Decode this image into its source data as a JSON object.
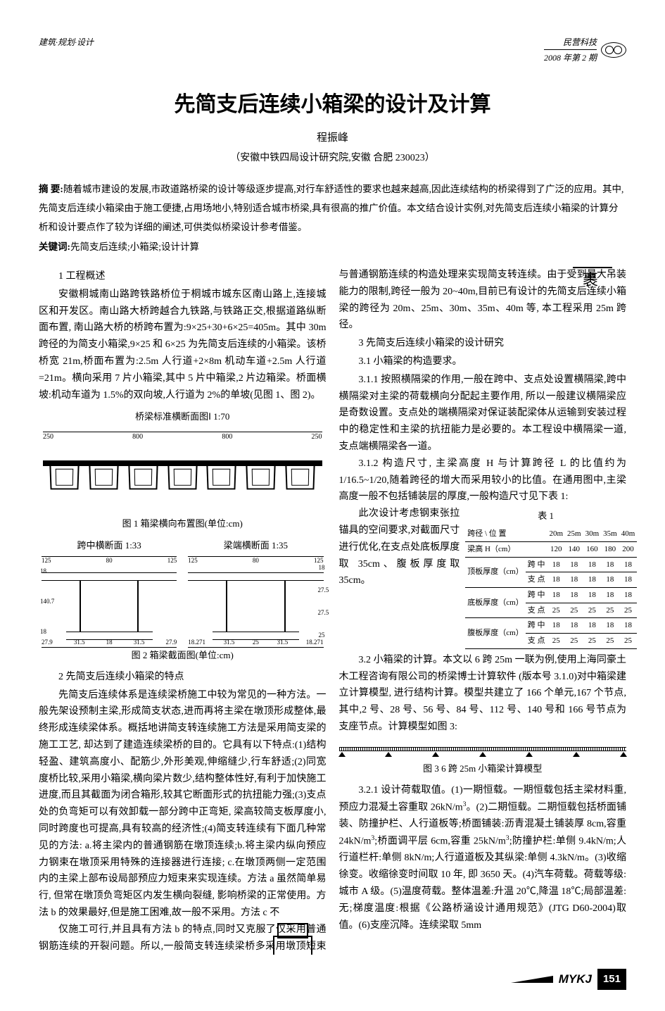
{
  "header": {
    "left": "建筑·规划·设计",
    "journal": "民营科技",
    "issue": "2008 年第 2 期"
  },
  "title": "先简支后连续小箱梁的设计及计算",
  "author": "程振峰",
  "affiliation": "（安徽中铁四局设计研究院,安徽 合肥 230023）",
  "abstract_label": "摘 要:",
  "abstract": "随着城市建设的发展,市政道路桥梁的设计等级逐步提高,对行车舒适性的要求也越来越高,因此连续结构的桥梁得到了广泛的应用。其中,先简支后连续小箱梁由于施工便捷,占用场地小,特别适合城市桥梁,具有很高的推广价值。本文结合设计实例,对先简支后连续小箱梁的计算分析和设计要点作了较为详细的阐述,可供类似桥梁设计参考借鉴。",
  "keywords_label": "关键词:",
  "keywords": "先简支后连续;小箱梁;设计计算",
  "sections": {
    "s1_title": "1 工程概述",
    "s1_body": "安徽桐城南山路跨铁路桥位于桐城市城东区南山路上,连接城区和开发区。南山路大桥跨越合九铁路,与铁路正交,根据道路纵断面布置, 南山路大桥的桥跨布置为:9×25+30+6×25=405m。其中 30m 跨径的为简支小箱梁,9×25 和 6×25 为先简支后连续的小箱梁。该桥桥宽 21m,桥面布置为:2.5m 人行道+2×8m 机动车道+2.5m 人行道=21m。横向采用 7 片小箱梁,其中 5 片中箱梁,2 片边箱梁。桥面横坡:机动车道为 1.5%的双向坡,人行道为 2%的单坡(见图 1、图 2)。",
    "fig1_title": "桥梁标准横断面图Ⅰ   1:70",
    "fig1_caption": "图 1 箱梁横向布置图(单位:cm)",
    "fig1_top_dims": [
      "250",
      "800",
      "800",
      "250"
    ],
    "fig2_left_title": "跨中横断面   1:33",
    "fig2_right_title": "梁端横断面   1:35",
    "fig2_caption": "图 2 箱梁截面图(单位:cm)",
    "fig2_left_top_dims": [
      "125",
      "80",
      "125"
    ],
    "fig2_left_side": [
      "18",
      "140.7",
      "18"
    ],
    "fig2_left_bot_dims": [
      "27.9",
      "31.5",
      "18",
      "31.5",
      "27.9"
    ],
    "fig2_right_top_dims": [
      "125",
      "80",
      "125"
    ],
    "fig2_right_side": [
      "18",
      "27.5",
      "27.5",
      "25"
    ],
    "fig2_right_bot_dims": [
      "18.271",
      "31.5",
      "25",
      "31.5",
      "18.271"
    ],
    "s2_title": "2 先简支后连续小箱梁的特点",
    "s2_body": "先简支后连续体系是连续梁桥施工中较为常见的一种方法。一般先架设预制主梁,形成简支状态,进而再将主梁在墩顶形成整体,最终形成连续梁体系。概括地讲简支转连续施工方法是采用简支梁的施工工艺, 却达到了建造连续梁桥的目的。它具有以下特点:(1)结构轻盈、建筑高度小、配筋少,外形美观,伸缩缝少,行车舒适;(2)同宽度桥比较,采用小箱梁,横向梁片数少,结构整体性好,有利于加快施工进度,而且其截面为闭合箱形,较其它断面形式的抗扭能力强;(3)支点处的负弯矩可以有效卸载一部分跨中正弯矩, 梁高较简支板厚度小, 同时跨度也可提高,具有较高的经济性;(4)简支转连续有下面几种常见的方法: a.将主梁内的普通钢筋在墩顶连续;b.将主梁内纵向预应力钢束在墩顶采用特殊的连接器进行连接; c.在墩顶两侧一定范围内的主梁上部布设局部预应力短束来实现连续。方法 a 虽然简单易行, 但常在墩顶负弯矩区内发生横向裂缝, 影响桥梁的正常使用。方法 b 的效果最好,但是施工困难,故一般不采用。方法 c 不",
    "s2_r_body": "仅施工可行,并且具有方法 b 的特点,同时又克服了仅采用普通钢筋连续的开裂问题。所以,一般简支转连续梁桥多采用墩顶短束与普通钢筋连续的构造处理来实现简支转连续。由于受到最大吊装能力的限制,跨径一般为 20~40m,目前已有设计的先简支后连续小箱梁的跨径为 20m、25m、30m、35m、40m 等, 本工程采用 25m 跨径。",
    "s3_title": "3 先简支后连续小箱梁的设计研究",
    "s31_title": "3.1 小箱梁的构造要求。",
    "s311": "3.1.1 按照横隔梁的作用,一般在跨中、支点处设置横隔梁,跨中横隔梁对主梁的荷载横向分配起主要作用, 所以一般建议横隔梁应是奇数设置。支点处的端横隔梁对保证装配梁体从运输到安装过程中的稳定性和主梁的抗扭能力是必要的。本工程设中横隔梁一道,支点端横隔梁各一道。",
    "s312": "3.1.2 构造尺寸, 主梁高度 H 与计算跨径 L 的比值约为 1/16.5~1/20,随着跨径的增大而采用较小的比值。在通用图中,主梁高度一般不包括铺装层的厚度,一般构造尺寸见下表 1:",
    "tbl1_caption": "表 1",
    "tbl1_intro": "此次设计考虑钢束张拉锚具的空间要求,对截面尺寸进行优化,在支点处底板厚度取 35cm、腹板厚度取 35cm。",
    "table1": {
      "span_label": "跨径",
      "pos_label": "位 置",
      "spans": [
        "20m",
        "25m",
        "30m",
        "35m",
        "40m"
      ],
      "height_label": "梁高 H（cm）",
      "heights": [
        120,
        140,
        160,
        180,
        200
      ],
      "rows": [
        {
          "label": "顶板厚度（cm）",
          "r1": "跨 中",
          "v1": [
            18,
            18,
            18,
            18,
            18
          ],
          "r2": "支 点",
          "v2": [
            18,
            18,
            18,
            18,
            18
          ]
        },
        {
          "label": "底板厚度（cm）",
          "r1": "跨 中",
          "v1": [
            18,
            18,
            18,
            18,
            18
          ],
          "r2": "支 点",
          "v2": [
            25,
            25,
            25,
            25,
            25
          ]
        },
        {
          "label": "腹板厚度（cm）",
          "r1": "跨 中",
          "v1": [
            18,
            18,
            18,
            18,
            18
          ],
          "r2": "支 点",
          "v2": [
            25,
            25,
            25,
            25,
            25
          ]
        }
      ]
    },
    "s32": "3.2 小箱梁的计算。本文以 6 跨 25m 一联为例,使用上海同豪土木工程咨询有限公司的桥梁博士计算软件 (版本号 3.1.0)对中箱梁建立计算模型, 进行结构计算。模型共建立了 166 个单元,167 个节点, 其中,2 号、28 号、56 号、84 号、112 号、140 号和 166 号节点为支座节点。计算模型如图 3:",
    "fig3_caption": "图 3 6 跨 25m 小箱梁计算模型",
    "fig3_supports_pct": [
      1,
      17.3,
      33.6,
      50,
      66.3,
      82.6,
      99
    ],
    "s321": "3.2.1 设计荷载取值。(1)一期恒载。一期恒载包括主梁材料重,预应力混凝土容重取 26kN/m³。(2)二期恒载。二期恒载包括桥面铺装、防撞护栏、人行道板等;桥面铺装:沥青混凝土铺装厚 8cm,容重 24kN/m³;桥面调平层 6cm,容重 25kN/m³;防撞护栏:单侧 9.4kN/m;人行道栏杆:单侧 8kN/m;人行道道板及其纵梁:单侧 4.3kN/m。(3)收缩徐变。收缩徐变时间取 10 年, 即 3650 天。(4)汽车荷载。荷载等级:城市 A 级。(5)温度荷载。整体温差:升温 20℃,降温 18℃;局部温差:无;梯度温度:根据《公路桥涵设计通用规范》(JTG D60-2004)取值。(6)支座沉降。连续梁取 5mm"
  },
  "footer": {
    "code": "MYKJ",
    "page": "151"
  }
}
